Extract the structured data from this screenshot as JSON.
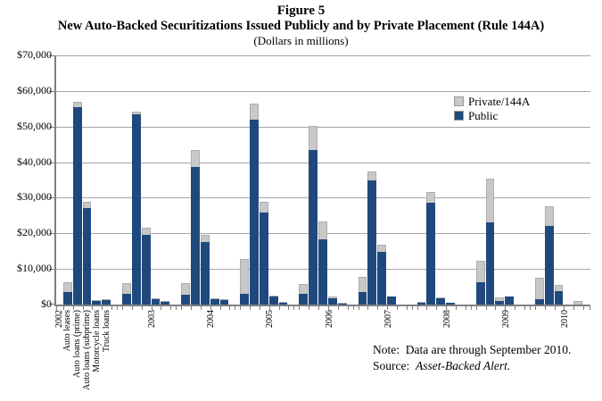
{
  "title": {
    "figure": "Figure 5",
    "main": "New Auto-Backed Securitizations Issued Publicly and by Private Placement (Rule 144A)",
    "sub": "(Dollars in millions)"
  },
  "note": {
    "note_label": "Note:",
    "note_text": "Data are through September 2010.",
    "source_label": "Source:",
    "source_text": "Asset-Backed Alert."
  },
  "chart_data": {
    "type": "bar",
    "stacked": true,
    "title": "New Auto-Backed Securitizations Issued Publicly and by Private Placement (Rule 144A)",
    "subtitle": "(Dollars in millions)",
    "ylabel": "Dollars in millions",
    "ylim": [
      0,
      70000
    ],
    "ytick_values": [
      0,
      10000,
      20000,
      30000,
      40000,
      50000,
      60000,
      70000
    ],
    "ytick_labels": [
      "$0",
      "$10,000",
      "$20,000",
      "$30,000",
      "$40,000",
      "$50,000",
      "$60,000",
      "$70,000"
    ],
    "grid": "horizontal",
    "legend_position": "upper-right-inside",
    "series": [
      {
        "name": "Private/144A",
        "key": "private_144a",
        "color": "#C8C8C8"
      },
      {
        "name": "Public",
        "key": "public",
        "color": "#1F497D"
      }
    ],
    "axis_color": "#7F7F7F",
    "gridline_color": "#A6A6A6",
    "group_categories": [
      "Auto leases",
      "Auto loans (prime)",
      "Auto loans (subprime)",
      "Motorcycle loans",
      "Truck loans"
    ],
    "category_labels_shown_for_first_group_only": true,
    "groups": [
      {
        "year": "2002",
        "bars": [
          {
            "category": "Auto leases",
            "public": 3400,
            "private_144a": 2900
          },
          {
            "category": "Auto loans (prime)",
            "public": 55500,
            "private_144a": 1400
          },
          {
            "category": "Auto loans (subprime)",
            "public": 27000,
            "private_144a": 1900
          },
          {
            "category": "Motorcycle loans",
            "public": 1000,
            "private_144a": 200
          },
          {
            "category": "Truck loans",
            "public": 1300,
            "private_144a": 200
          }
        ]
      },
      {
        "year": "2003",
        "bars": [
          {
            "category": "Auto leases",
            "public": 3000,
            "private_144a": 3100
          },
          {
            "category": "Auto loans (prime)",
            "public": 53500,
            "private_144a": 800
          },
          {
            "category": "Auto loans (subprime)",
            "public": 19500,
            "private_144a": 2100
          },
          {
            "category": "Motorcycle loans",
            "public": 1400,
            "private_144a": 200
          },
          {
            "category": "Truck loans",
            "public": 800,
            "private_144a": 100
          }
        ]
      },
      {
        "year": "2004",
        "bars": [
          {
            "category": "Auto leases",
            "public": 2800,
            "private_144a": 3200
          },
          {
            "category": "Auto loans (prime)",
            "public": 38700,
            "private_144a": 4800
          },
          {
            "category": "Auto loans (subprime)",
            "public": 17500,
            "private_144a": 2000
          },
          {
            "category": "Motorcycle loans",
            "public": 1500,
            "private_144a": 300
          },
          {
            "category": "Truck loans",
            "public": 1200,
            "private_144a": 200
          }
        ]
      },
      {
        "year": "2005",
        "bars": [
          {
            "category": "Auto leases",
            "public": 2900,
            "private_144a": 9800
          },
          {
            "category": "Auto loans (prime)",
            "public": 52000,
            "private_144a": 4500
          },
          {
            "category": "Auto loans (subprime)",
            "public": 25800,
            "private_144a": 3100
          },
          {
            "category": "Motorcycle loans",
            "public": 2300,
            "private_144a": 300
          },
          {
            "category": "Truck loans",
            "public": 400,
            "private_144a": 100
          }
        ]
      },
      {
        "year": "2006",
        "bars": [
          {
            "category": "Auto leases",
            "public": 3000,
            "private_144a": 2800
          },
          {
            "category": "Auto loans (prime)",
            "public": 43500,
            "private_144a": 6600
          },
          {
            "category": "Auto loans (subprime)",
            "public": 18300,
            "private_144a": 5100
          },
          {
            "category": "Motorcycle loans",
            "public": 1700,
            "private_144a": 600
          },
          {
            "category": "Truck loans",
            "public": 200,
            "private_144a": 100
          }
        ]
      },
      {
        "year": "2007",
        "bars": [
          {
            "category": "Auto leases",
            "public": 3500,
            "private_144a": 4300
          },
          {
            "category": "Auto loans (prime)",
            "public": 35000,
            "private_144a": 2500
          },
          {
            "category": "Auto loans (subprime)",
            "public": 14700,
            "private_144a": 2100
          },
          {
            "category": "Motorcycle loans",
            "public": 2300,
            "private_144a": 0
          },
          {
            "category": "Truck loans",
            "public": 0,
            "private_144a": 0
          }
        ]
      },
      {
        "year": "2008",
        "bars": [
          {
            "category": "Auto leases",
            "public": 500,
            "private_144a": 100
          },
          {
            "category": "Auto loans (prime)",
            "public": 28500,
            "private_144a": 3200
          },
          {
            "category": "Auto loans (subprime)",
            "public": 1700,
            "private_144a": 300
          },
          {
            "category": "Motorcycle loans",
            "public": 400,
            "private_144a": 0
          },
          {
            "category": "Truck loans",
            "public": 0,
            "private_144a": 0
          }
        ]
      },
      {
        "year": "2009",
        "bars": [
          {
            "category": "Auto leases",
            "public": 6300,
            "private_144a": 5900
          },
          {
            "category": "Auto loans (prime)",
            "public": 23000,
            "private_144a": 12500
          },
          {
            "category": "Auto loans (subprime)",
            "public": 1000,
            "private_144a": 1000
          },
          {
            "category": "Motorcycle loans",
            "public": 2300,
            "private_144a": 0
          },
          {
            "category": "Truck loans",
            "public": 0,
            "private_144a": 0
          }
        ]
      },
      {
        "year": "2010",
        "bars": [
          {
            "category": "Auto leases",
            "public": 1400,
            "private_144a": 6200
          },
          {
            "category": "Auto loans (prime)",
            "public": 22000,
            "private_144a": 5500
          },
          {
            "category": "Auto loans (subprime)",
            "public": 3800,
            "private_144a": 1700
          },
          {
            "category": "Motorcycle loans",
            "public": 0,
            "private_144a": 0
          },
          {
            "category": "Truck loans",
            "public": 0,
            "private_144a": 900
          }
        ]
      }
    ]
  }
}
